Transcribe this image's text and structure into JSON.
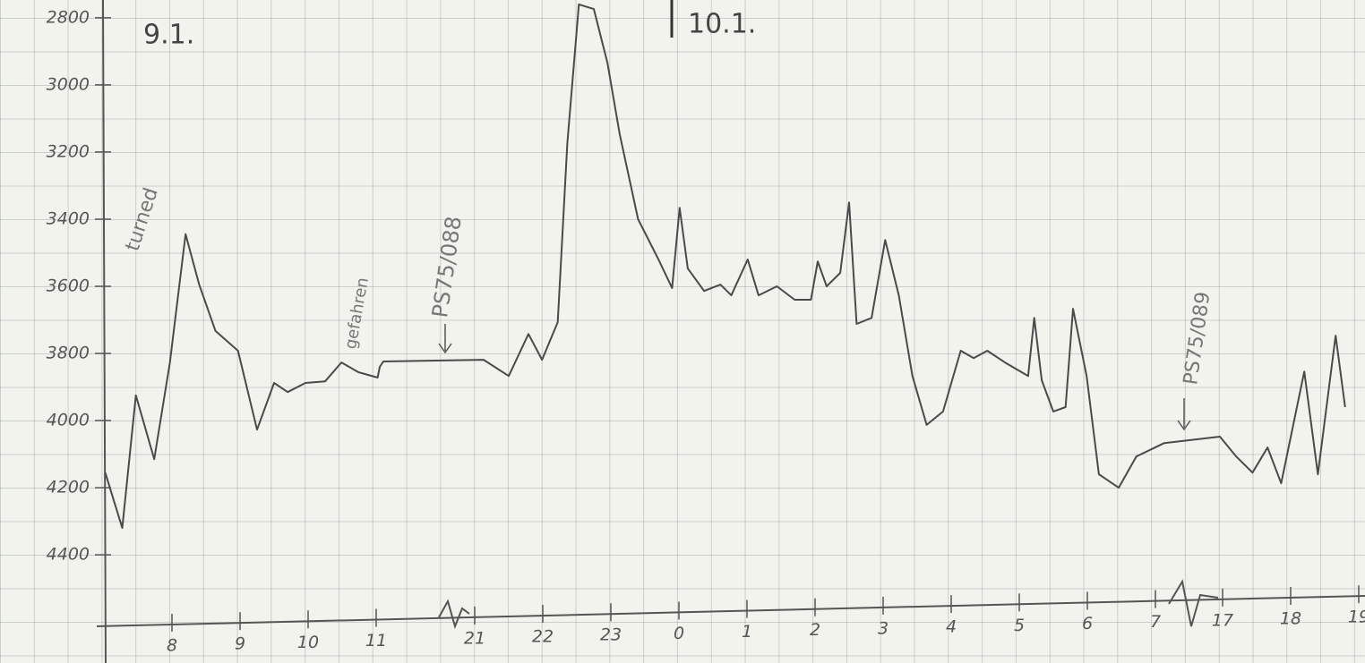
{
  "chart_data": {
    "type": "line",
    "annotations": [
      "9.1.",
      "10.1.",
      "turned",
      "gefahren",
      "PS75/088",
      "PS75/089"
    ],
    "xlim": [
      6.95,
      43.1
    ],
    "xticks": [
      8,
      9,
      10,
      11,
      21,
      22,
      23,
      {
        "value": 24,
        "label": "0"
      },
      {
        "value": 25,
        "label": "1"
      },
      {
        "value": 26,
        "label": "2"
      },
      {
        "value": 27,
        "label": "3"
      },
      {
        "value": 28,
        "label": "4"
      },
      {
        "value": 29,
        "label": "5"
      },
      {
        "value": 30,
        "label": "6"
      },
      {
        "value": 31,
        "label": "7"
      },
      {
        "value": 41,
        "label": "17"
      },
      {
        "value": 42,
        "label": "18"
      },
      {
        "value": 43,
        "label": "19"
      }
    ],
    "ylim": [
      4613,
      2747
    ],
    "yticks": [
      2800,
      3000,
      3200,
      3400,
      3600,
      3800,
      4000,
      4200,
      4400
    ],
    "grid": true,
    "color": "#4a4a4a",
    "x": [
      7.02,
      7.27,
      7.47,
      7.74,
      7.97,
      8.2,
      8.4,
      8.64,
      8.97,
      9.25,
      9.5,
      9.7,
      9.96,
      10.25,
      10.49,
      10.74,
      11.15,
      11.36,
      11.73,
      21.13,
      21.5,
      21.79,
      21.99,
      22.22,
      22.36,
      22.53,
      22.75,
      22.95,
      23.13,
      23.4,
      23.7,
      23.9,
      24.01,
      24.13,
      24.37,
      24.61,
      24.77,
      25.01,
      25.17,
      25.44,
      25.7,
      25.94,
      26.04,
      26.17,
      26.37,
      26.5,
      26.61,
      26.83,
      27.03,
      27.23,
      27.43,
      27.64,
      27.88,
      28.14,
      28.33,
      28.53,
      28.79,
      29.13,
      29.22,
      29.33,
      29.5,
      29.68,
      29.79,
      29.99,
      30.17,
      30.46,
      30.72,
      32.3,
      40.6,
      41.2,
      41.44,
      41.66,
      41.86,
      42.2,
      42.4,
      42.66,
      42.8
    ],
    "values": [
      4155,
      4320,
      3925,
      4115,
      3827,
      3445,
      3595,
      3733,
      3792,
      4027,
      3888,
      3915,
      3888,
      3883,
      3827,
      3856,
      3872,
      3840,
      3824,
      3819,
      3867,
      3742,
      3819,
      3707,
      3174,
      2760,
      2774,
      2934,
      3147,
      3400,
      3520,
      3605,
      3366,
      3547,
      3614,
      3595,
      3627,
      3520,
      3627,
      3600,
      3640,
      3640,
      3526,
      3600,
      3560,
      3350,
      3712,
      3694,
      3462,
      3627,
      3867,
      4013,
      3973,
      3792,
      3814,
      3792,
      3827,
      3867,
      3694,
      3880,
      3973,
      3960,
      3667,
      3867,
      4160,
      4200,
      4107,
      4067,
      4048,
      4107,
      4155,
      4080,
      4187,
      3854,
      4160,
      3747,
      3960
    ]
  }
}
